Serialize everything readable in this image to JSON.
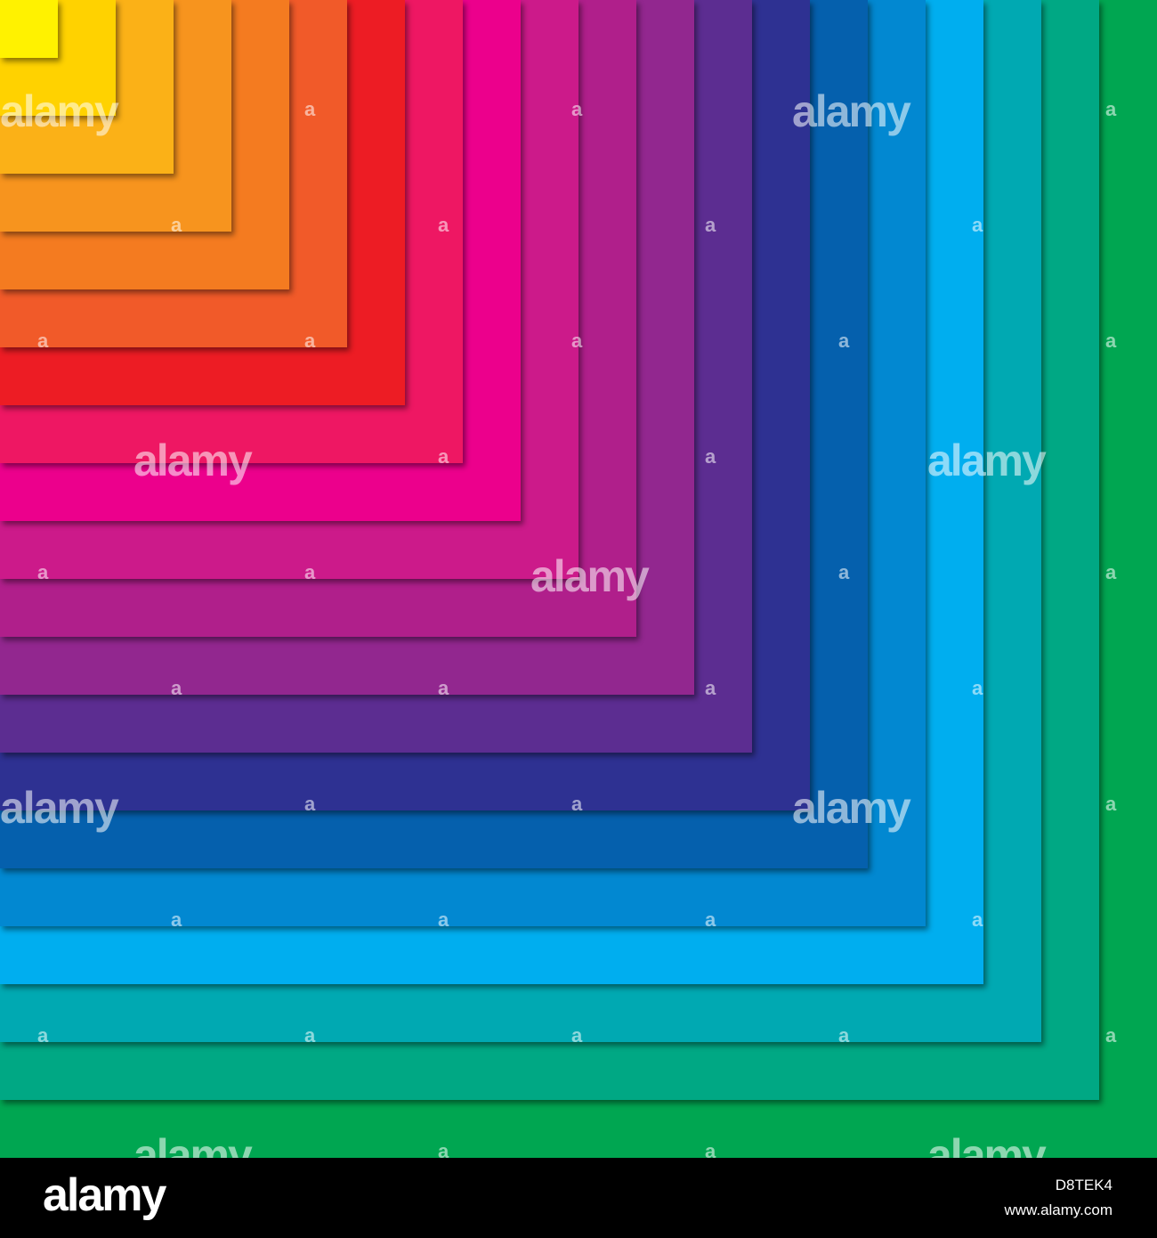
{
  "artwork": {
    "stripe_colors": [
      "#00a651",
      "#00a884",
      "#00a9b2",
      "#00aeef",
      "#0288d1",
      "#0560ad",
      "#2e3192",
      "#5c2d91",
      "#92278f",
      "#b01f8b",
      "#cc1a8a",
      "#ec008c",
      "#ee1763",
      "#ed1c24",
      "#f15a29",
      "#f47b20",
      "#f7941e",
      "#fbb117",
      "#ffd200",
      "#fff200"
    ]
  },
  "watermark": {
    "big_text": "alamy",
    "small_text": "a"
  },
  "footer": {
    "logo": "alamy",
    "image_id": "D8TEK4",
    "url": "www.alamy.com"
  }
}
